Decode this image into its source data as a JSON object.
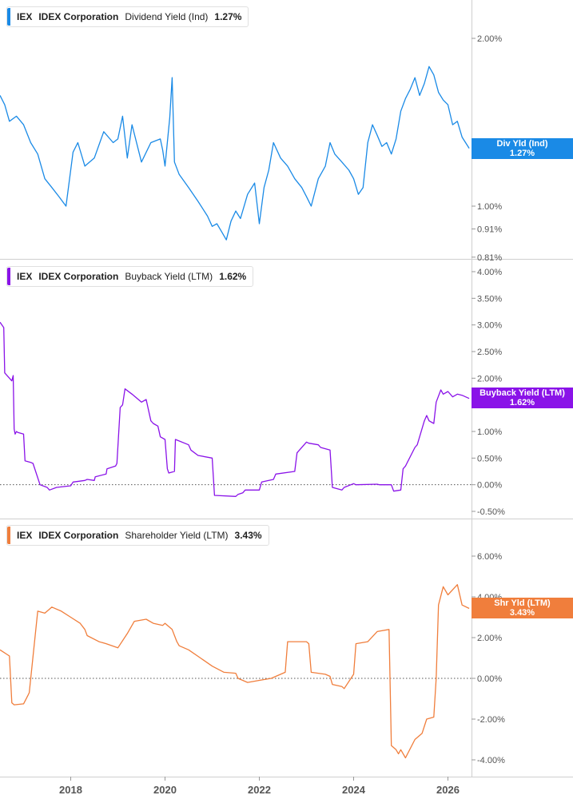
{
  "chart_data": [
    {
      "type": "line",
      "ticker": "IEX",
      "company": "IDEX Corporation",
      "metric": "Dividend Yield (Ind)",
      "value_label": "1.27%",
      "flag": {
        "line1": "Div Yld (Ind)",
        "line2": "1.27%"
      },
      "color": "#1a8ae6",
      "scale": "log",
      "yticks": [
        2.0,
        1.0,
        0.91,
        0.81
      ],
      "ytick_labels": [
        "2.00%",
        "1.00%",
        "0.91%",
        "0.81%"
      ],
      "zero_line": false,
      "x": [
        2016.5,
        2016.6,
        2016.7,
        2016.85,
        2017.0,
        2017.15,
        2017.3,
        2017.45,
        2017.6,
        2017.75,
        2017.9,
        2018.05,
        2018.15,
        2018.3,
        2018.5,
        2018.7,
        2018.9,
        2019.0,
        2019.1,
        2019.2,
        2019.3,
        2019.5,
        2019.7,
        2019.9,
        2019.95,
        2020.0,
        2020.1,
        2020.15,
        2020.2,
        2020.3,
        2020.5,
        2020.7,
        2020.9,
        2021.0,
        2021.1,
        2021.2,
        2021.3,
        2021.4,
        2021.5,
        2021.6,
        2021.75,
        2021.9,
        2022.0,
        2022.1,
        2022.2,
        2022.3,
        2022.45,
        2022.6,
        2022.75,
        2022.9,
        2023.0,
        2023.1,
        2023.25,
        2023.4,
        2023.5,
        2023.6,
        2023.75,
        2023.9,
        2024.0,
        2024.1,
        2024.2,
        2024.3,
        2024.4,
        2024.5,
        2024.6,
        2024.7,
        2024.8,
        2024.9,
        2025.0,
        2025.1,
        2025.2,
        2025.3,
        2025.4,
        2025.5,
        2025.6,
        2025.7,
        2025.8,
        2025.9,
        2026.0,
        2026.1,
        2026.2,
        2026.3,
        2026.45
      ],
      "y": [
        1.58,
        1.52,
        1.42,
        1.45,
        1.4,
        1.3,
        1.24,
        1.12,
        1.08,
        1.04,
        1.0,
        1.25,
        1.3,
        1.18,
        1.22,
        1.36,
        1.3,
        1.32,
        1.45,
        1.22,
        1.4,
        1.2,
        1.3,
        1.32,
        1.26,
        1.18,
        1.44,
        1.7,
        1.2,
        1.14,
        1.08,
        1.02,
        0.96,
        0.92,
        0.93,
        0.9,
        0.87,
        0.94,
        0.98,
        0.95,
        1.05,
        1.1,
        0.93,
        1.08,
        1.16,
        1.3,
        1.22,
        1.18,
        1.12,
        1.08,
        1.04,
        1.0,
        1.12,
        1.18,
        1.3,
        1.24,
        1.2,
        1.16,
        1.12,
        1.05,
        1.08,
        1.3,
        1.4,
        1.34,
        1.28,
        1.3,
        1.24,
        1.32,
        1.48,
        1.56,
        1.62,
        1.7,
        1.58,
        1.66,
        1.78,
        1.72,
        1.6,
        1.55,
        1.52,
        1.4,
        1.42,
        1.33,
        1.27
      ]
    },
    {
      "type": "line",
      "ticker": "IEX",
      "company": "IDEX Corporation",
      "metric": "Buyback Yield (LTM)",
      "value_label": "1.62%",
      "flag": {
        "line1": "Buyback Yield (LTM)",
        "line2": "1.62%"
      },
      "color": "#8a13e8",
      "scale": "linear",
      "yticks": [
        4.0,
        3.5,
        3.0,
        2.5,
        2.0,
        1.5,
        1.0,
        0.5,
        0.0,
        -0.5
      ],
      "ytick_labels": [
        "4.00%",
        "3.50%",
        "3.00%",
        "2.50%",
        "2.00%",
        "",
        "1.00%",
        "0.50%",
        "0.00%",
        "-0.50%"
      ],
      "zero_line": true,
      "x": [
        2016.5,
        2016.58,
        2016.6,
        2016.75,
        2016.78,
        2016.8,
        2016.82,
        2016.85,
        2016.88,
        2017.0,
        2017.03,
        2017.15,
        2017.2,
        2017.35,
        2017.5,
        2017.55,
        2017.7,
        2018.0,
        2018.05,
        2018.3,
        2018.35,
        2018.5,
        2018.52,
        2018.75,
        2018.77,
        2018.95,
        2018.98,
        2019.05,
        2019.1,
        2019.15,
        2019.3,
        2019.5,
        2019.6,
        2019.7,
        2019.75,
        2019.85,
        2019.9,
        2020.0,
        2020.05,
        2020.08,
        2020.2,
        2020.22,
        2020.5,
        2020.55,
        2020.7,
        2021.0,
        2021.05,
        2021.5,
        2021.55,
        2021.65,
        2021.7,
        2022.0,
        2022.05,
        2022.3,
        2022.35,
        2022.75,
        2022.8,
        2023.0,
        2023.05,
        2023.25,
        2023.3,
        2023.5,
        2023.55,
        2023.75,
        2023.8,
        2024.0,
        2024.05,
        2024.5,
        2024.55,
        2024.8,
        2024.85,
        2025.0,
        2025.05,
        2025.1,
        2025.3,
        2025.35,
        2025.5,
        2025.55,
        2025.6,
        2025.7,
        2025.75,
        2025.85,
        2025.9,
        2026.0,
        2026.1,
        2026.2,
        2026.3,
        2026.45
      ],
      "y": [
        3.05,
        2.95,
        2.1,
        1.95,
        2.05,
        1.05,
        0.95,
        1.0,
        0.98,
        0.95,
        0.45,
        0.42,
        0.4,
        0.0,
        -0.05,
        -0.1,
        -0.05,
        -0.02,
        0.05,
        0.08,
        0.1,
        0.08,
        0.15,
        0.2,
        0.3,
        0.35,
        0.4,
        1.45,
        1.5,
        1.8,
        1.7,
        1.55,
        1.6,
        1.2,
        1.15,
        1.1,
        0.9,
        0.85,
        0.3,
        0.22,
        0.25,
        0.85,
        0.75,
        0.65,
        0.55,
        0.5,
        -0.2,
        -0.22,
        -0.18,
        -0.15,
        -0.1,
        -0.1,
        0.05,
        0.1,
        0.2,
        0.25,
        0.6,
        0.8,
        0.78,
        0.75,
        0.7,
        0.65,
        -0.05,
        -0.1,
        -0.05,
        0.02,
        0.0,
        0.01,
        0.0,
        0.0,
        -0.12,
        -0.1,
        0.3,
        0.35,
        0.7,
        0.75,
        1.2,
        1.3,
        1.2,
        1.15,
        1.55,
        1.78,
        1.7,
        1.75,
        1.65,
        1.7,
        1.68,
        1.62
      ]
    },
    {
      "type": "line",
      "ticker": "IEX",
      "company": "IDEX Corporation",
      "metric": "Shareholder Yield (LTM)",
      "value_label": "3.43%",
      "flag": {
        "line1": "Shr Yld (LTM)",
        "line2": "3.43%"
      },
      "color": "#f07e3c",
      "scale": "linear",
      "yticks": [
        6.0,
        4.0,
        2.0,
        0.0,
        -2.0,
        -4.0
      ],
      "ytick_labels": [
        "6.00%",
        "4.00%",
        "2.00%",
        "0.00%",
        "-2.00%",
        "-4.00%"
      ],
      "zero_line": true,
      "x": [
        2016.5,
        2016.7,
        2016.75,
        2016.8,
        2017.0,
        2017.1,
        2017.12,
        2017.3,
        2017.45,
        2017.6,
        2017.8,
        2018.0,
        2018.2,
        2018.3,
        2018.35,
        2018.6,
        2018.75,
        2019.0,
        2019.2,
        2019.35,
        2019.6,
        2019.75,
        2019.95,
        2020.0,
        2020.15,
        2020.25,
        2020.3,
        2020.5,
        2020.75,
        2021.0,
        2021.25,
        2021.5,
        2021.55,
        2021.75,
        2022.0,
        2022.25,
        2022.35,
        2022.55,
        2022.6,
        2023.0,
        2023.05,
        2023.1,
        2023.4,
        2023.5,
        2023.55,
        2023.75,
        2023.8,
        2024.0,
        2024.05,
        2024.3,
        2024.5,
        2024.75,
        2024.8,
        2024.9,
        2024.95,
        2025.0,
        2025.1,
        2025.3,
        2025.45,
        2025.55,
        2025.7,
        2025.75,
        2025.8,
        2025.9,
        2026.0,
        2026.2,
        2026.3,
        2026.45
      ],
      "y": [
        1.4,
        1.1,
        -1.2,
        -1.3,
        -1.25,
        -0.8,
        -0.7,
        3.3,
        3.2,
        3.5,
        3.3,
        3.0,
        2.7,
        2.4,
        2.1,
        1.8,
        1.7,
        1.5,
        2.2,
        2.8,
        2.9,
        2.7,
        2.6,
        2.7,
        2.4,
        1.8,
        1.6,
        1.4,
        1.0,
        0.6,
        0.3,
        0.25,
        0.0,
        -0.2,
        -0.1,
        0.0,
        0.1,
        0.3,
        1.8,
        1.8,
        1.7,
        0.3,
        0.2,
        0.1,
        -0.3,
        -0.4,
        -0.5,
        0.2,
        1.7,
        1.8,
        2.3,
        2.4,
        -3.3,
        -3.5,
        -3.7,
        -3.5,
        -3.9,
        -3.0,
        -2.7,
        -2.0,
        -1.9,
        0.0,
        3.6,
        4.5,
        4.1,
        4.6,
        3.6,
        3.43
      ]
    }
  ],
  "x_axis": {
    "ticks": [
      2018,
      2020,
      2022,
      2024,
      2026
    ],
    "labels": [
      "2018",
      "2020",
      "2022",
      "2024",
      "2026"
    ],
    "range": [
      2016.5,
      2026.5
    ]
  }
}
